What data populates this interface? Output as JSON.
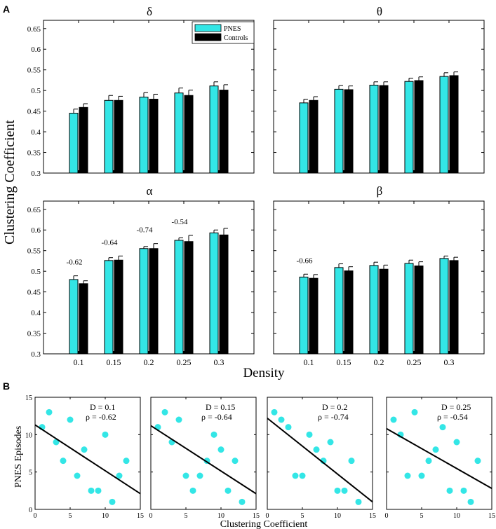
{
  "figure": {
    "panel_a_label": "A",
    "panel_b_label": "B",
    "colors": {
      "pnes": "#33e6e6",
      "controls": "#000000",
      "scatter": "#33e6e6",
      "axis": "#000000"
    }
  },
  "chart_data": [
    {
      "type": "bar",
      "title": "δ",
      "categories": [
        "0.1",
        "0.15",
        "0.2",
        "0.25",
        "0.3"
      ],
      "ylim": [
        0.3,
        0.67
      ],
      "yticks": [
        "0.3",
        "0.35",
        "0.4",
        "0.45",
        "0.5",
        "0.55",
        "0.6",
        "0.65"
      ],
      "xlabel": "Density",
      "ylabel": "Clustering Coefficient",
      "legend": [
        "PNES",
        "Controls"
      ],
      "series": [
        {
          "name": "PNES",
          "values": [
            0.445,
            0.476,
            0.484,
            0.494,
            0.511
          ],
          "errors": [
            0.01,
            0.012,
            0.011,
            0.012,
            0.01
          ]
        },
        {
          "name": "Controls",
          "values": [
            0.459,
            0.476,
            0.479,
            0.488,
            0.501
          ],
          "errors": [
            0.009,
            0.01,
            0.012,
            0.013,
            0.013
          ]
        }
      ],
      "annotations": []
    },
    {
      "type": "bar",
      "title": "θ",
      "categories": [
        "0.1",
        "0.15",
        "0.2",
        "0.25",
        "0.3"
      ],
      "ylim": [
        0.3,
        0.67
      ],
      "series": [
        {
          "name": "PNES",
          "values": [
            0.47,
            0.503,
            0.513,
            0.522,
            0.534
          ],
          "errors": [
            0.009,
            0.009,
            0.008,
            0.008,
            0.009
          ]
        },
        {
          "name": "Controls",
          "values": [
            0.476,
            0.502,
            0.512,
            0.524,
            0.536
          ],
          "errors": [
            0.009,
            0.009,
            0.009,
            0.009,
            0.009
          ]
        }
      ],
      "annotations": []
    },
    {
      "type": "bar",
      "title": "α",
      "categories": [
        "0.1",
        "0.15",
        "0.2",
        "0.25",
        "0.3"
      ],
      "ylim": [
        0.3,
        0.67
      ],
      "yticks": [
        "0.3",
        "0.35",
        "0.4",
        "0.45",
        "0.5",
        "0.55",
        "0.6",
        "0.65"
      ],
      "series": [
        {
          "name": "PNES",
          "values": [
            0.48,
            0.526,
            0.555,
            0.575,
            0.593
          ],
          "errors": [
            0.009,
            0.007,
            0.005,
            0.006,
            0.007
          ]
        },
        {
          "name": "Controls",
          "values": [
            0.47,
            0.527,
            0.555,
            0.572,
            0.588
          ],
          "errors": [
            0.007,
            0.01,
            0.012,
            0.015,
            0.016
          ]
        }
      ],
      "annotations": [
        {
          "category": "0.1",
          "text": "-0.62"
        },
        {
          "category": "0.15",
          "text": "-0.64"
        },
        {
          "category": "0.2",
          "text": "-0.74"
        },
        {
          "category": "0.25",
          "text": "-0.54"
        }
      ]
    },
    {
      "type": "bar",
      "title": "β",
      "categories": [
        "0.1",
        "0.15",
        "0.2",
        "0.25",
        "0.3"
      ],
      "ylim": [
        0.3,
        0.67
      ],
      "series": [
        {
          "name": "PNES",
          "values": [
            0.486,
            0.509,
            0.514,
            0.519,
            0.531
          ],
          "errors": [
            0.007,
            0.009,
            0.008,
            0.008,
            0.006
          ]
        },
        {
          "name": "Controls",
          "values": [
            0.483,
            0.501,
            0.505,
            0.513,
            0.526
          ],
          "errors": [
            0.009,
            0.01,
            0.01,
            0.01,
            0.008
          ]
        }
      ],
      "annotations": [
        {
          "category": "0.1",
          "text": "-0.66"
        }
      ]
    },
    {
      "type": "scatter",
      "xlim": [
        0,
        15
      ],
      "ylim": [
        0,
        15
      ],
      "xticks": [
        "0",
        "5",
        "10",
        "15"
      ],
      "yticks": [
        "0",
        "5",
        "10",
        "15"
      ],
      "xlabel": "Clustering Coefficient",
      "ylabel": "PNES Episodes",
      "label_d": "D = 0.1",
      "label_rho": "ρ = -0.62",
      "points": [
        [
          1,
          11
        ],
        [
          2,
          13
        ],
        [
          3,
          9
        ],
        [
          4,
          6.5
        ],
        [
          5,
          12
        ],
        [
          6,
          4.5
        ],
        [
          7,
          8
        ],
        [
          8,
          2.5
        ],
        [
          9,
          2.5
        ],
        [
          10,
          10
        ],
        [
          11,
          1
        ],
        [
          12,
          4.5
        ],
        [
          13,
          6.5
        ]
      ],
      "fit": [
        [
          0,
          11.3
        ],
        [
          15,
          2.1
        ]
      ]
    },
    {
      "type": "scatter",
      "xlim": [
        0,
        15
      ],
      "ylim": [
        0,
        15
      ],
      "xticks": [
        "0",
        "5",
        "10",
        "15"
      ],
      "label_d": "D = 0.15",
      "label_rho": "ρ = -0.64",
      "points": [
        [
          1,
          11
        ],
        [
          2,
          13
        ],
        [
          3,
          9
        ],
        [
          4,
          12
        ],
        [
          5,
          4.5
        ],
        [
          6,
          2.5
        ],
        [
          7,
          4.5
        ],
        [
          8,
          6.5
        ],
        [
          9,
          10
        ],
        [
          10,
          8
        ],
        [
          11,
          2.5
        ],
        [
          12,
          6.5
        ],
        [
          13,
          1
        ]
      ],
      "fit": [
        [
          0,
          11.2
        ],
        [
          15,
          2.1
        ]
      ]
    },
    {
      "type": "scatter",
      "xlim": [
        0,
        15
      ],
      "ylim": [
        0,
        15
      ],
      "xticks": [
        "0",
        "5",
        "10",
        "15"
      ],
      "label_d": "D = 0.2",
      "label_rho": "ρ = -0.74",
      "points": [
        [
          1,
          13
        ],
        [
          2,
          12
        ],
        [
          3,
          11
        ],
        [
          4,
          4.5
        ],
        [
          5,
          4.5
        ],
        [
          6,
          10
        ],
        [
          7,
          8
        ],
        [
          8,
          6.5
        ],
        [
          9,
          9
        ],
        [
          10,
          2.5
        ],
        [
          11,
          2.5
        ],
        [
          12,
          6.5
        ],
        [
          13,
          1
        ]
      ],
      "fit": [
        [
          0,
          12.2
        ],
        [
          15,
          1
        ]
      ]
    },
    {
      "type": "scatter",
      "xlim": [
        0,
        15
      ],
      "ylim": [
        0,
        15
      ],
      "xticks": [
        "0",
        "5",
        "10",
        "15"
      ],
      "label_d": "D = 0.25",
      "label_rho": "ρ = -0.54",
      "points": [
        [
          1,
          12
        ],
        [
          2,
          10
        ],
        [
          3,
          4.5
        ],
        [
          4,
          13
        ],
        [
          5,
          4.5
        ],
        [
          6,
          6.5
        ],
        [
          7,
          8
        ],
        [
          8,
          11
        ],
        [
          9,
          2.5
        ],
        [
          10,
          9
        ],
        [
          11,
          2.5
        ],
        [
          12,
          1
        ],
        [
          13,
          6.5
        ]
      ],
      "fit": [
        [
          0,
          10.8
        ],
        [
          15,
          2.8
        ]
      ]
    }
  ]
}
